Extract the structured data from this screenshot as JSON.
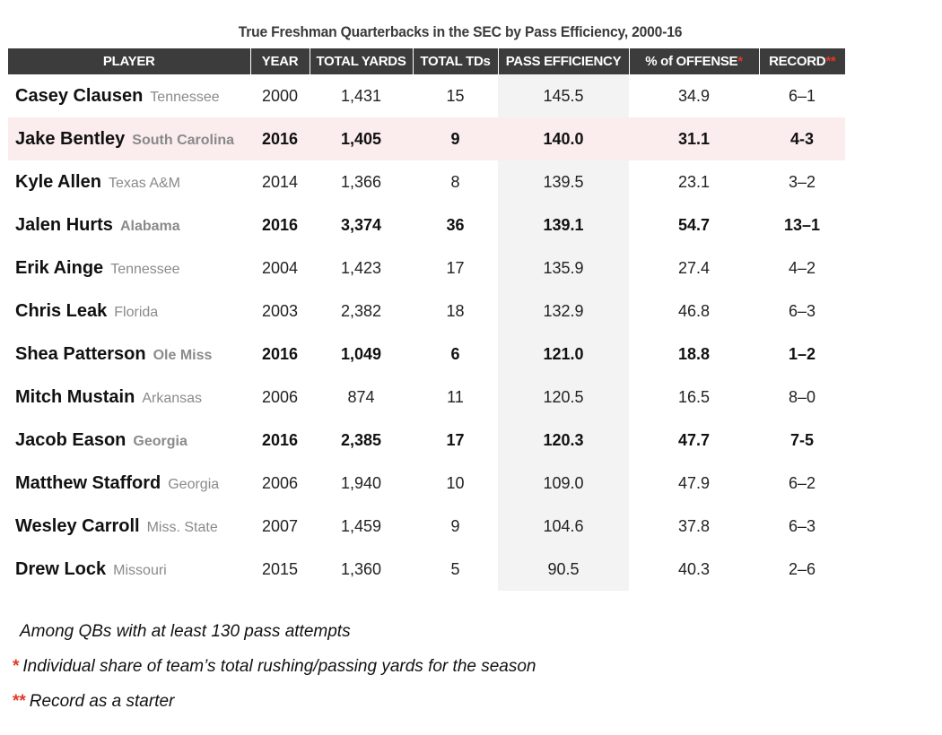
{
  "title": "True Freshman Quarterbacks in the SEC by Pass Efficiency, 2000-16",
  "headers": {
    "player": "PLAYER",
    "year": "YEAR",
    "total_yards": "TOTAL YARDS",
    "total_tds": "TOTAL TDs",
    "pass_efficiency": "PASS EFFICIENCY",
    "pct_offense": "% of OFFENSE",
    "pct_offense_mark": "*",
    "record": "RECORD",
    "record_mark": "**"
  },
  "rows": [
    {
      "name": "Casey Clausen",
      "school": "Tennessee",
      "year": "2000",
      "yards": "1,431",
      "tds": "15",
      "eff": "145.5",
      "pct": "34.9",
      "record": "6–1"
    },
    {
      "name": "Jake Bentley",
      "school": "South Carolina",
      "year": "2016",
      "yards": "1,405",
      "tds": "9",
      "eff": "140.0",
      "pct": "31.1",
      "record": "4-3"
    },
    {
      "name": "Kyle Allen",
      "school": "Texas A&M",
      "year": "2014",
      "yards": "1,366",
      "tds": "8",
      "eff": "139.5",
      "pct": "23.1",
      "record": "3–2"
    },
    {
      "name": "Jalen Hurts",
      "school": "Alabama",
      "year": "2016",
      "yards": "3,374",
      "tds": "36",
      "eff": "139.1",
      "pct": "54.7",
      "record": "13–1"
    },
    {
      "name": "Erik Ainge",
      "school": "Tennessee",
      "year": "2004",
      "yards": "1,423",
      "tds": "17",
      "eff": "135.9",
      "pct": "27.4",
      "record": "4–2"
    },
    {
      "name": "Chris Leak",
      "school": "Florida",
      "year": "2003",
      "yards": "2,382",
      "tds": "18",
      "eff": "132.9",
      "pct": "46.8",
      "record": "6–3"
    },
    {
      "name": "Shea Patterson",
      "school": "Ole Miss",
      "year": "2016",
      "yards": "1,049",
      "tds": "6",
      "eff": "121.0",
      "pct": "18.8",
      "record": "1–2"
    },
    {
      "name": "Mitch Mustain",
      "school": "Arkansas",
      "year": "2006",
      "yards": "874",
      "tds": "11",
      "eff": "120.5",
      "pct": "16.5",
      "record": "8–0"
    },
    {
      "name": "Jacob Eason",
      "school": "Georgia",
      "year": "2016",
      "yards": "2,385",
      "tds": "17",
      "eff": "120.3",
      "pct": "47.7",
      "record": "7-5"
    },
    {
      "name": "Matthew Stafford",
      "school": "Georgia",
      "year": "2006",
      "yards": "1,940",
      "tds": "10",
      "eff": "109.0",
      "pct": "47.9",
      "record": "6–2"
    },
    {
      "name": "Wesley Carroll",
      "school": "Miss. State",
      "year": "2007",
      "yards": "1,459",
      "tds": "9",
      "eff": "104.6",
      "pct": "37.8",
      "record": "6–3"
    },
    {
      "name": "Drew Lock",
      "school": "Missouri",
      "year": "2015",
      "yards": "1,360",
      "tds": "5",
      "eff": "90.5",
      "pct": "40.3",
      "record": "2–6"
    }
  ],
  "notes": {
    "note1": "Among QBs with at least 130 pass attempts",
    "note2_mark": "*",
    "note2": "Individual share of team’s total rushing/passing yards for the season",
    "note3_mark": "**",
    "note3": "Record as a starter"
  },
  "colors": {
    "header_bg": "#3c3c3c",
    "highlight_row": "#fbeced",
    "efficiency_column": "#f3f3f3",
    "footnote_mark": "#e0392b"
  }
}
